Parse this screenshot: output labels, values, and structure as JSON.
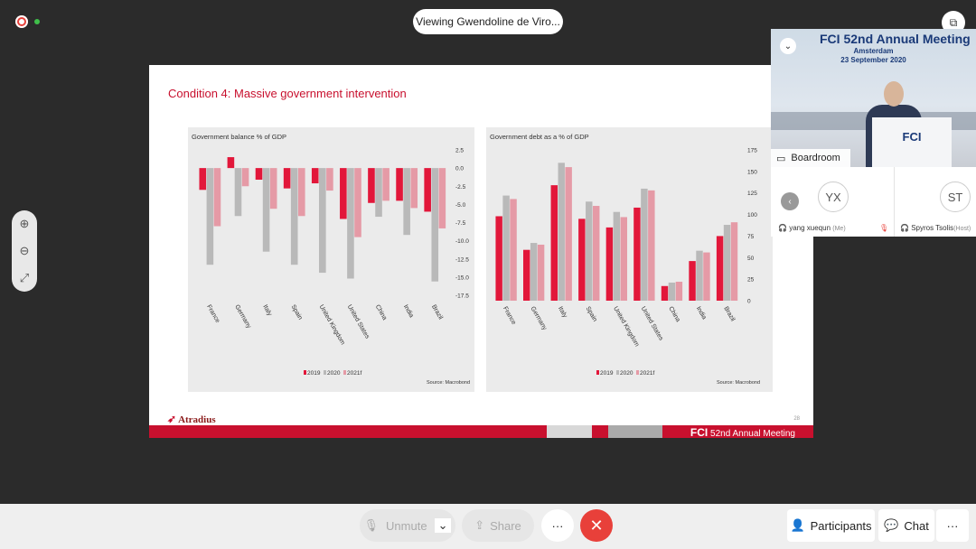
{
  "top": {
    "viewing_label": "Viewing Gwendoline de Viro..."
  },
  "slide": {
    "title": "Condition 4: Massive government intervention",
    "page_number": "28",
    "logo_text": "Atradius",
    "band_text_brand": "FCI",
    "band_text_rest": "52nd Annual Meeting"
  },
  "chart_data": [
    {
      "type": "bar",
      "title": "Government balance % of GDP",
      "categories": [
        "France",
        "Germany",
        "Italy",
        "Spain",
        "United Kingdom",
        "United States",
        "China",
        "India",
        "Brazil"
      ],
      "series": [
        {
          "name": "2019",
          "color": "#e2173a",
          "values": [
            -3.0,
            1.5,
            -1.6,
            -2.8,
            -2.1,
            -7.0,
            -4.8,
            -4.5,
            -6.0
          ]
        },
        {
          "name": "2020",
          "color": "#b9b9b9",
          "values": [
            -13.3,
            -6.6,
            -11.5,
            -13.3,
            -14.4,
            -15.2,
            -6.7,
            -9.2,
            -15.6
          ]
        },
        {
          "name": "2021f",
          "color": "#e59aa6",
          "values": [
            -8.0,
            -2.5,
            -5.6,
            -6.6,
            -3.1,
            -9.5,
            -4.5,
            -5.5,
            -8.3
          ]
        }
      ],
      "yticks": [
        "2.5",
        "0.0",
        "-2.5",
        "-5.0",
        "-7.5",
        "-10.0",
        "-12.5",
        "-15.0",
        "-17.5"
      ],
      "ylim": [
        -17.5,
        2.5
      ],
      "legend": [
        "2019",
        "2020",
        "2021f"
      ],
      "source": "Source: Macrobond"
    },
    {
      "type": "bar",
      "title": "Government debt as a % of GDP",
      "categories": [
        "France",
        "Germany",
        "Italy",
        "Spain",
        "United Kingdom",
        "United States",
        "China",
        "India",
        "Brazil"
      ],
      "series": [
        {
          "name": "2019",
          "color": "#e2173a",
          "values": [
            98,
            59,
            134,
            95,
            85,
            108,
            17,
            46,
            75
          ]
        },
        {
          "name": "2020",
          "color": "#b9b9b9",
          "values": [
            122,
            67,
            160,
            115,
            103,
            130,
            21,
            58,
            88
          ]
        },
        {
          "name": "2021f",
          "color": "#e59aa6",
          "values": [
            118,
            65,
            155,
            110,
            97,
            128,
            22,
            56,
            91
          ]
        }
      ],
      "yticks": [
        "175",
        "150",
        "125",
        "100",
        "75",
        "50",
        "25",
        "0"
      ],
      "ylim": [
        0,
        175
      ],
      "legend": [
        "2019",
        "2020",
        "2021f"
      ],
      "source": "Source: Macrobond"
    }
  ],
  "video": {
    "title": "FCI 52nd Annual Meeting",
    "city": "Amsterdam",
    "date": "23 September 2020",
    "lectern_logo": "FCI",
    "room_label": "Boardroom"
  },
  "participants": [
    {
      "initials": "YX",
      "name": "yang xuequn",
      "role": "(Me)"
    },
    {
      "initials": "ST",
      "name": "Spyros Tsolis",
      "role": "(Host)"
    }
  ],
  "toolbar": {
    "unmute_label": "Unmute",
    "share_label": "Share",
    "more_label": "···",
    "end_label": "✕",
    "participants_label": "Participants",
    "chat_label": "Chat",
    "overflow_label": "···"
  },
  "colors": {
    "accent_red": "#c8102e",
    "end_call": "#e8403a"
  }
}
